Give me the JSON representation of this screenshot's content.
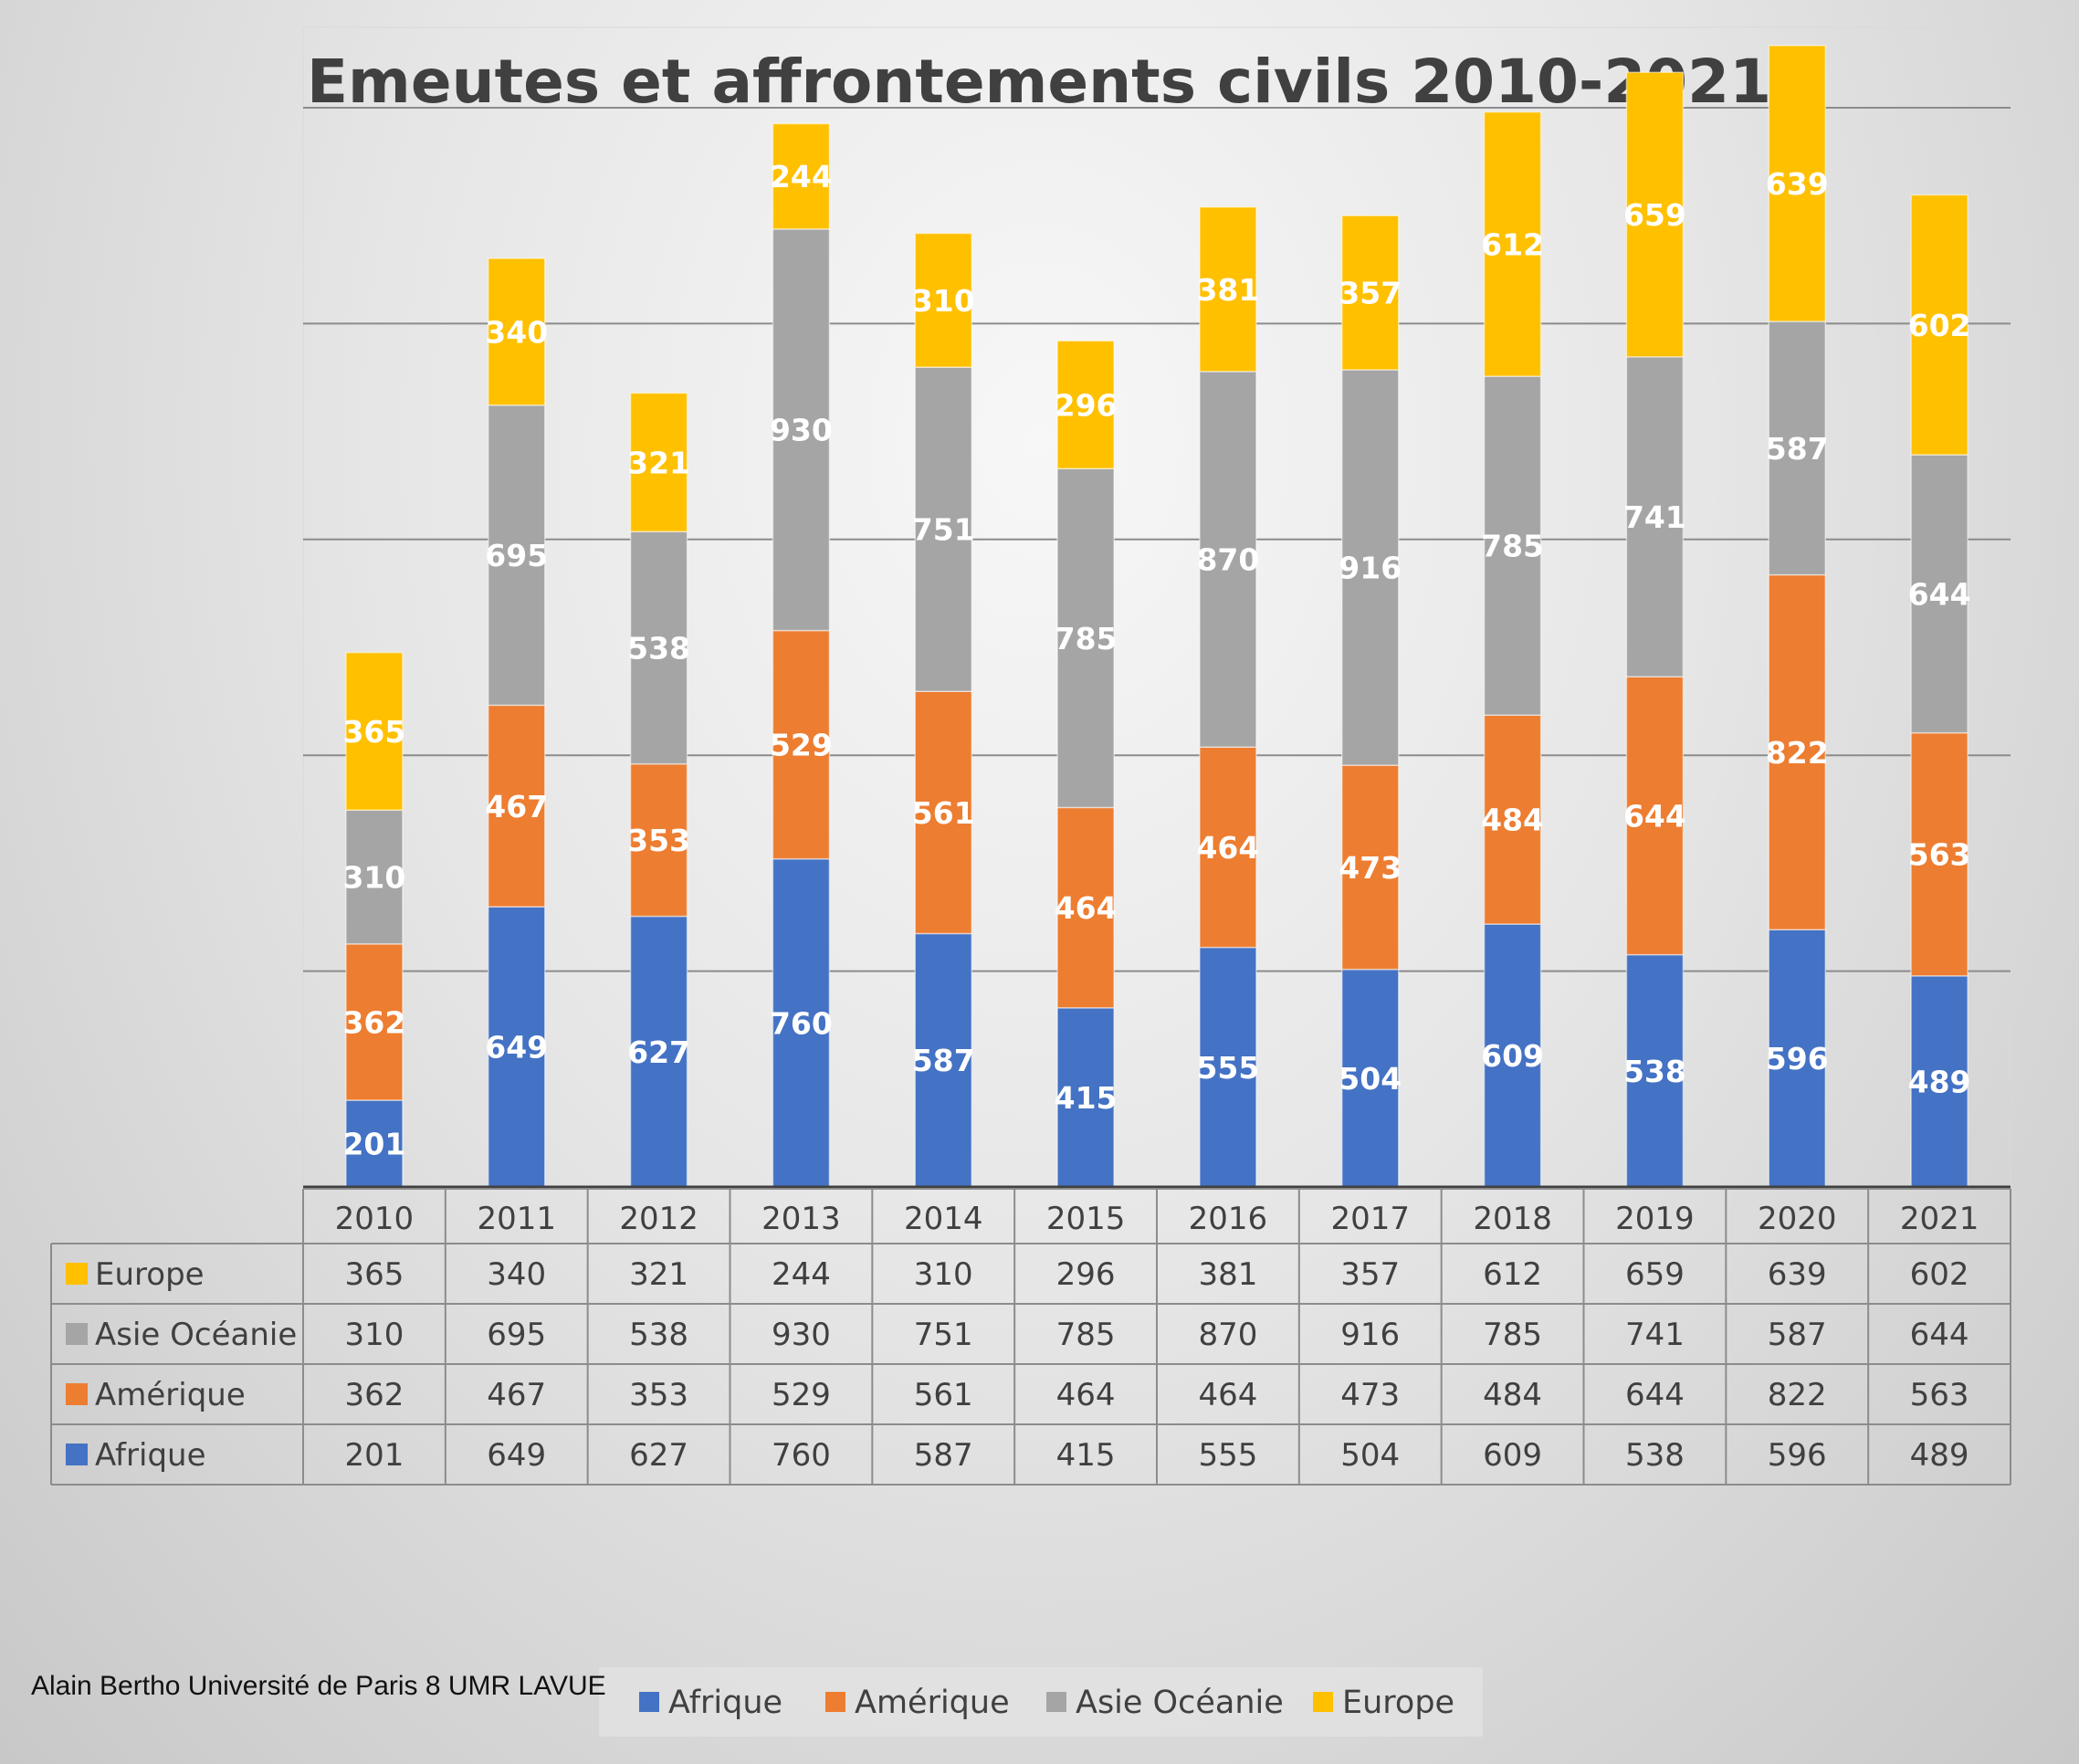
{
  "chart_data": {
    "type": "bar",
    "stacked": true,
    "title": "Emeutes et affrontements civils 2010-2021",
    "xlabel": "",
    "ylabel": "",
    "ylim": [
      0,
      2600
    ],
    "gridline_step": 500,
    "categories": [
      "2010",
      "2011",
      "2012",
      "2013",
      "2014",
      "2015",
      "2016",
      "2017",
      "2018",
      "2019",
      "2020",
      "2021"
    ],
    "series": [
      {
        "name": "Afrique",
        "color": "#4472C4",
        "values": [
          201,
          649,
          627,
          760,
          587,
          415,
          555,
          504,
          609,
          538,
          596,
          489
        ]
      },
      {
        "name": "Amérique",
        "color": "#ED7D31",
        "values": [
          362,
          467,
          353,
          529,
          561,
          464,
          464,
          473,
          484,
          644,
          822,
          563
        ]
      },
      {
        "name": "Asie Océanie",
        "color": "#A5A5A5",
        "values": [
          310,
          695,
          538,
          930,
          751,
          785,
          870,
          916,
          785,
          741,
          587,
          644
        ]
      },
      {
        "name": "Europe",
        "color": "#FFC000",
        "values": [
          365,
          340,
          321,
          244,
          310,
          296,
          381,
          357,
          612,
          659,
          639,
          602
        ]
      }
    ],
    "data_table_row_order": [
      "Europe",
      "Asie Océanie",
      "Amérique",
      "Afrique"
    ],
    "legend_position": "bottom",
    "credit": "Alain Bertho Université de Paris 8 UMR LAVUE"
  }
}
